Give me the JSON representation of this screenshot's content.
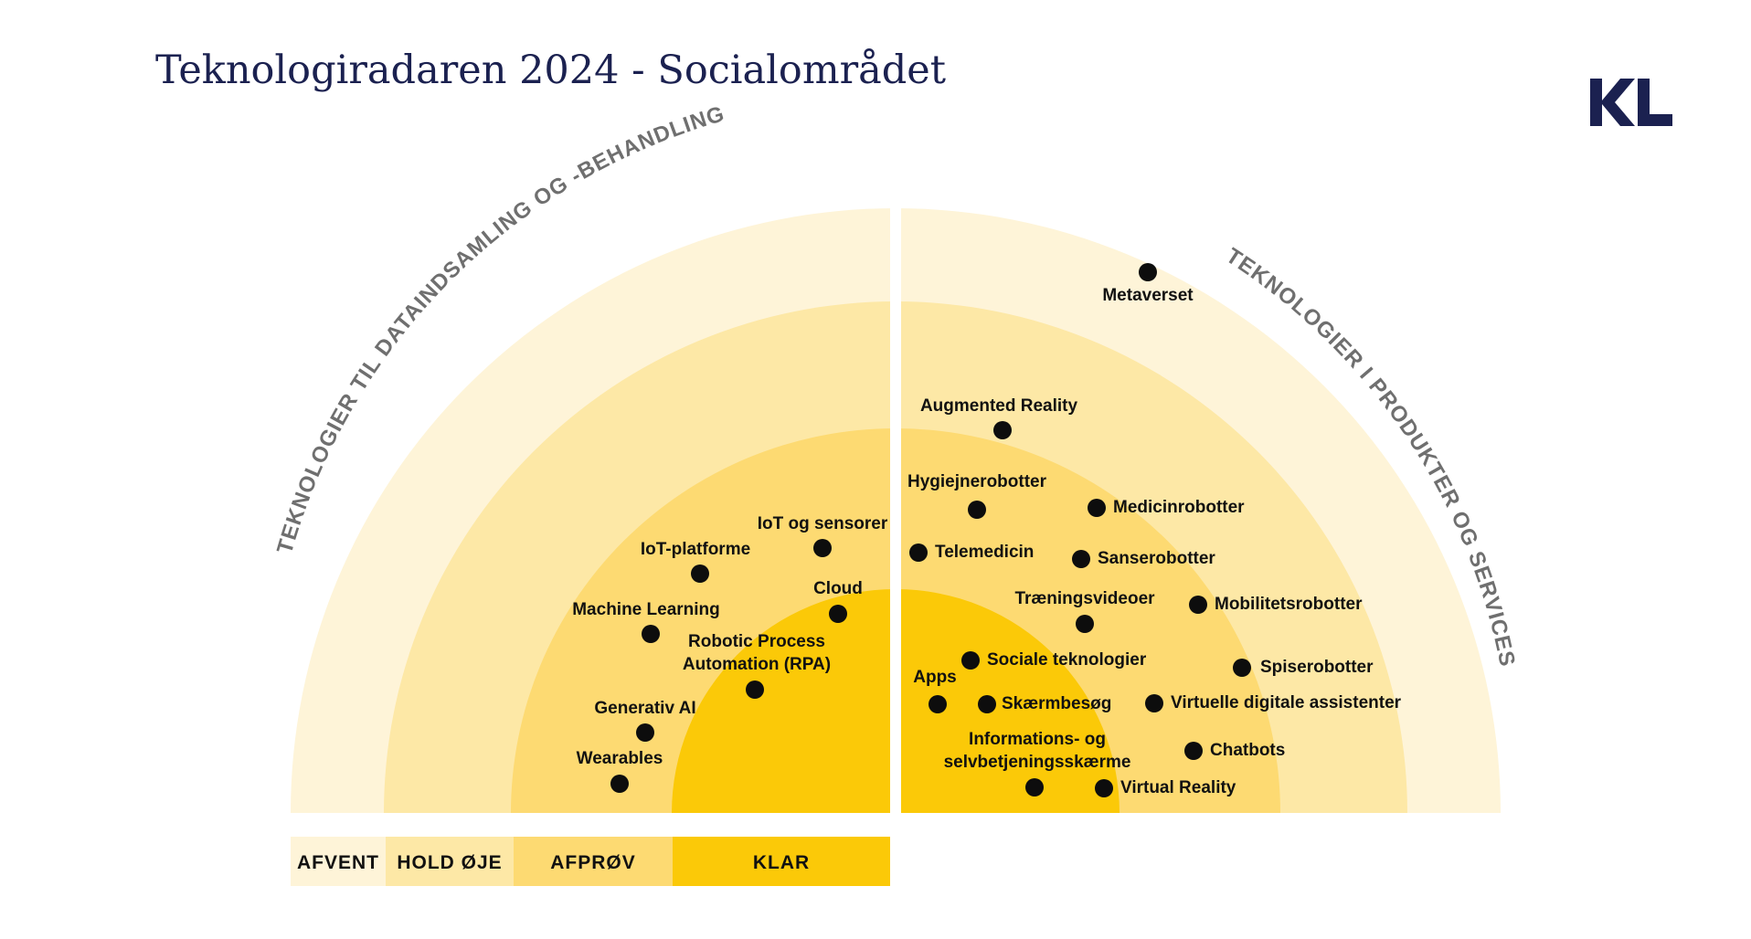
{
  "title": "Teknologiradaren 2024 - Socialområdet",
  "logo": {
    "text": "KL",
    "icon": "kl-logo"
  },
  "colors": {
    "ring_afvent": "#fef4d8",
    "ring_hold_oeje": "#fde8a6",
    "ring_afproev": "#fdda72",
    "ring_klar": "#fbc908",
    "point": "#0d0d0d",
    "title": "#1b2150",
    "arc_label": "#6f6f6f"
  },
  "sections": {
    "left": "TEKNOLOGIER TIL DATAINDSAMLING OG -BEHANDLING",
    "right": "TEKNOLOGIER I PRODUKTER OG SERVICES"
  },
  "rings": [
    {
      "key": "afvent",
      "label": "AFVENT"
    },
    {
      "key": "hold_oeje",
      "label": "HOLD ØJE"
    },
    {
      "key": "afproev",
      "label": "AFPRØV"
    },
    {
      "key": "klar",
      "label": "KLAR"
    }
  ],
  "technologies": {
    "left": [
      {
        "name": "IoT og sensorer",
        "ring": "afproev"
      },
      {
        "name": "IoT-platforme",
        "ring": "afproev"
      },
      {
        "name": "Cloud",
        "ring": "afproev"
      },
      {
        "name": "Machine Learning",
        "ring": "afproev"
      },
      {
        "name": "Robotic Process Automation (RPA)",
        "lines": [
          "Robotic Process",
          "Automation (RPA)"
        ],
        "ring": "afproev"
      },
      {
        "name": "Generativ AI",
        "ring": "afproev"
      },
      {
        "name": "Wearables",
        "ring": "afproev"
      }
    ],
    "right": [
      {
        "name": "Metaverset",
        "ring": "afvent"
      },
      {
        "name": "Augmented Reality",
        "ring": "hold_oeje"
      },
      {
        "name": "Hygiejnerobotter",
        "ring": "afproev"
      },
      {
        "name": "Medicinrobotter",
        "ring": "afproev"
      },
      {
        "name": "Telemedicin",
        "ring": "afproev"
      },
      {
        "name": "Sanserobotter",
        "ring": "afproev"
      },
      {
        "name": "Træningsvideoer",
        "ring": "afproev"
      },
      {
        "name": "Mobilitetsrobotter",
        "ring": "hold_oeje"
      },
      {
        "name": "Sociale teknologier",
        "ring": "klar"
      },
      {
        "name": "Apps",
        "ring": "klar"
      },
      {
        "name": "Spiserobotter",
        "ring": "hold_oeje"
      },
      {
        "name": "Skærmbesøg",
        "ring": "klar"
      },
      {
        "name": "Virtuelle digitale assistenter",
        "ring": "afproev"
      },
      {
        "name": "Informations- og selvbetjeningsskærme",
        "lines": [
          "Informations- og",
          "selvbetjeningsskærme"
        ],
        "ring": "klar"
      },
      {
        "name": "Chatbots",
        "ring": "hold_oeje"
      },
      {
        "name": "Virtual Reality",
        "ring": "afproev"
      }
    ]
  }
}
